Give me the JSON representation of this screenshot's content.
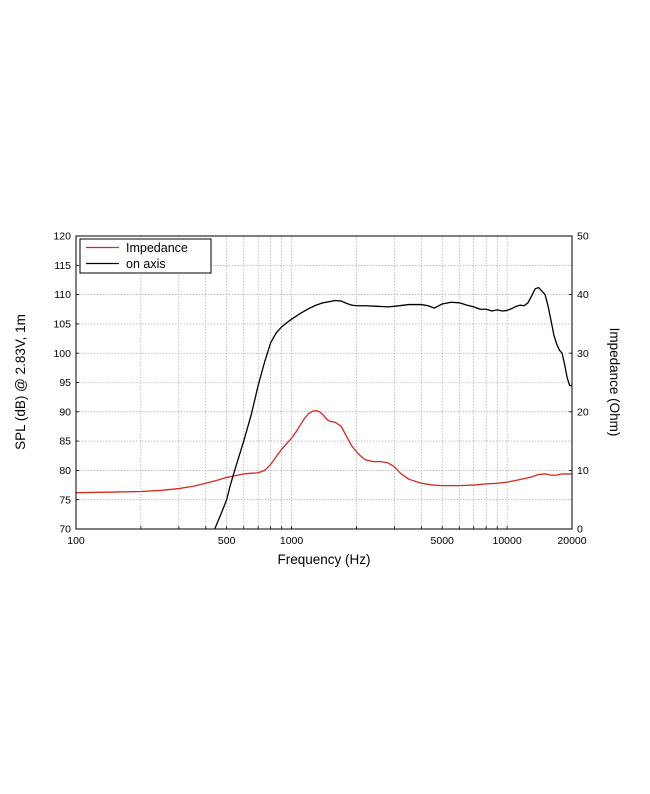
{
  "chart_data": {
    "type": "line",
    "xlabel": "Frequency (Hz)",
    "ylabel_left": "SPL (dB) @ 2.83V, 1m",
    "ylabel_right": "Impedance (Ohm)",
    "x_scale": "log",
    "xlim": [
      100,
      20000
    ],
    "ylim_left": [
      70,
      120
    ],
    "ylim_right": [
      0,
      50
    ],
    "x_tick_labels": [
      {
        "value": 100,
        "label": "100"
      },
      {
        "value": 500,
        "label": "500"
      },
      {
        "value": 1000,
        "label": "1000"
      },
      {
        "value": 5000,
        "label": "5000"
      },
      {
        "value": 10000,
        "label": "10000"
      },
      {
        "value": 20000,
        "label": "20000"
      }
    ],
    "y_left_ticks": [
      70,
      75,
      80,
      85,
      90,
      95,
      100,
      105,
      110,
      115,
      120
    ],
    "y_right_ticks": [
      0,
      10,
      20,
      30,
      40,
      50
    ],
    "grid": true,
    "legend_position": "top-left",
    "series": [
      {
        "name": "Impedance",
        "axis": "right",
        "color": "#d42a1e",
        "x": [
          100,
          150,
          200,
          250,
          300,
          350,
          400,
          450,
          500,
          550,
          600,
          650,
          700,
          750,
          800,
          850,
          900,
          950,
          1000,
          1050,
          1100,
          1150,
          1200,
          1250,
          1300,
          1350,
          1400,
          1450,
          1500,
          1600,
          1700,
          1800,
          1900,
          2000,
          2100,
          2200,
          2400,
          2600,
          2800,
          3000,
          3200,
          3500,
          4000,
          4500,
          5000,
          6000,
          7000,
          8000,
          9000,
          10000,
          11000,
          12000,
          13000,
          14000,
          15000,
          16000,
          17000,
          18000,
          19000,
          20000
        ],
        "y": [
          6.2,
          6.3,
          6.4,
          6.6,
          6.9,
          7.3,
          7.8,
          8.3,
          8.8,
          9.1,
          9.4,
          9.5,
          9.6,
          10.0,
          11.0,
          12.4,
          13.6,
          14.6,
          15.5,
          16.6,
          17.8,
          18.9,
          19.7,
          20.1,
          20.2,
          20.0,
          19.5,
          18.8,
          18.4,
          18.2,
          17.5,
          15.8,
          14.2,
          13.2,
          12.4,
          11.8,
          11.5,
          11.5,
          11.3,
          10.6,
          9.5,
          8.5,
          7.8,
          7.5,
          7.4,
          7.4,
          7.5,
          7.7,
          7.8,
          8.0,
          8.3,
          8.6,
          8.9,
          9.3,
          9.4,
          9.2,
          9.2,
          9.4,
          9.4,
          9.4
        ]
      },
      {
        "name": "on axis",
        "axis": "left",
        "color": "#000000",
        "x": [
          440,
          470,
          500,
          520,
          550,
          600,
          650,
          700,
          750,
          800,
          850,
          900,
          950,
          1000,
          1100,
          1200,
          1300,
          1400,
          1500,
          1600,
          1700,
          1800,
          1900,
          2000,
          2200,
          2500,
          2800,
          3000,
          3500,
          4000,
          4300,
          4600,
          5000,
          5500,
          6000,
          6500,
          7000,
          7500,
          8000,
          8500,
          9000,
          9500,
          10000,
          10500,
          11000,
          11500,
          12000,
          12500,
          13000,
          13500,
          14000,
          14500,
          15000,
          15500,
          16000,
          16500,
          17000,
          17500,
          18000,
          18500,
          19000,
          19500,
          20000
        ],
        "y": [
          70,
          72.5,
          75,
          77.5,
          80.5,
          85,
          89.5,
          94.5,
          98.5,
          101.8,
          103.5,
          104.5,
          105.2,
          105.8,
          106.8,
          107.6,
          108.2,
          108.6,
          108.8,
          109.0,
          108.9,
          108.5,
          108.2,
          108.1,
          108.1,
          108.0,
          107.9,
          108.0,
          108.3,
          108.3,
          108.1,
          107.7,
          108.4,
          108.7,
          108.6,
          108.2,
          107.9,
          107.5,
          107.5,
          107.2,
          107.4,
          107.2,
          107.3,
          107.6,
          108.0,
          108.2,
          108.1,
          108.6,
          109.8,
          111.0,
          111.2,
          110.6,
          110.0,
          108.0,
          105.5,
          103.0,
          101.5,
          100.5,
          100.0,
          98.0,
          95.8,
          94.5,
          94.4
        ]
      }
    ]
  }
}
